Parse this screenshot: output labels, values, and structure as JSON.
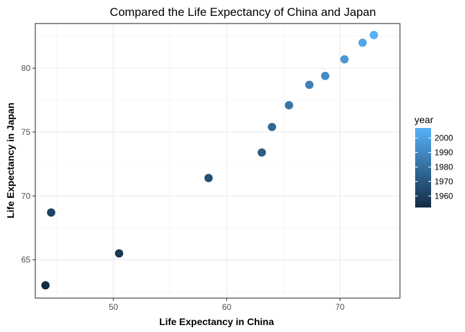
{
  "chart_data": {
    "type": "scatter",
    "title": "Compared the Life Expectancy of China and Japan",
    "xlabel": "Life Expectancy in China",
    "ylabel": "Life Expectancy in Japan",
    "xlim": [
      43.1,
      75.3
    ],
    "ylim": [
      62.0,
      83.5
    ],
    "xticks": [
      50,
      60,
      70
    ],
    "yticks": [
      65,
      70,
      75,
      80
    ],
    "grid": true,
    "color_scale": {
      "name": "year",
      "min": 1952,
      "max": 2007,
      "ticks": [
        1960,
        1970,
        1980,
        1990,
        2000
      ],
      "low_color": "#132b43",
      "high_color": "#56b1f7",
      "placement": "right"
    },
    "points": [
      {
        "year": 1952,
        "x": 44.0,
        "y": 63.0
      },
      {
        "year": 1957,
        "x": 50.5,
        "y": 65.5
      },
      {
        "year": 1962,
        "x": 44.5,
        "y": 68.7
      },
      {
        "year": 1967,
        "x": 58.4,
        "y": 71.4
      },
      {
        "year": 1972,
        "x": 63.1,
        "y": 73.4
      },
      {
        "year": 1977,
        "x": 64.0,
        "y": 75.4
      },
      {
        "year": 1982,
        "x": 65.5,
        "y": 77.1
      },
      {
        "year": 1987,
        "x": 67.3,
        "y": 78.7
      },
      {
        "year": 1992,
        "x": 68.7,
        "y": 79.4
      },
      {
        "year": 1997,
        "x": 70.4,
        "y": 80.7
      },
      {
        "year": 2002,
        "x": 72.0,
        "y": 82.0
      },
      {
        "year": 2007,
        "x": 73.0,
        "y": 82.6
      }
    ]
  }
}
